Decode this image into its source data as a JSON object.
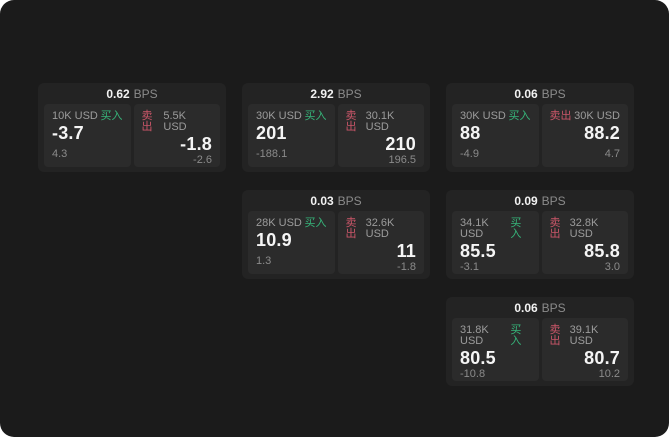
{
  "labels": {
    "buy": "买入",
    "sell": "卖出",
    "bps": "BPS"
  },
  "colors": {
    "page_background": "#1b1b1b",
    "card_background": "#232323",
    "panel_background": "#2b2b2b",
    "buy_green": "#36b57a",
    "sell_red": "#cb5669",
    "text_bright": "#f5f5f5",
    "text_muted": "#8b8b8b"
  },
  "cards": [
    {
      "bps": "0.62",
      "buy": {
        "notional": "10K USD",
        "price": "-3.7",
        "sub": "4.3"
      },
      "sell": {
        "notional": "5.5K USD",
        "price": "-1.8",
        "sub": "-2.6"
      }
    },
    {
      "bps": "2.92",
      "buy": {
        "notional": "30K USD",
        "price": "201",
        "sub": "-188.1"
      },
      "sell": {
        "notional": "30.1K USD",
        "price": "210",
        "sub": "196.5"
      }
    },
    {
      "bps": "0.06",
      "buy": {
        "notional": "30K USD",
        "price": "88",
        "sub": "-4.9"
      },
      "sell": {
        "notional": "30K USD",
        "price": "88.2",
        "sub": "4.7"
      }
    },
    {
      "bps": "0.03",
      "buy": {
        "notional": "28K USD",
        "price": "10.9",
        "sub": "1.3"
      },
      "sell": {
        "notional": "32.6K USD",
        "price": "11",
        "sub": "-1.8"
      }
    },
    {
      "bps": "0.09",
      "buy": {
        "notional": "34.1K USD",
        "price": "85.5",
        "sub": "-3.1"
      },
      "sell": {
        "notional": "32.8K USD",
        "price": "85.8",
        "sub": "3.0"
      }
    },
    {
      "bps": "0.06",
      "buy": {
        "notional": "31.8K USD",
        "price": "80.5",
        "sub": "-10.8"
      },
      "sell": {
        "notional": "39.1K USD",
        "price": "80.7",
        "sub": "10.2"
      }
    }
  ]
}
